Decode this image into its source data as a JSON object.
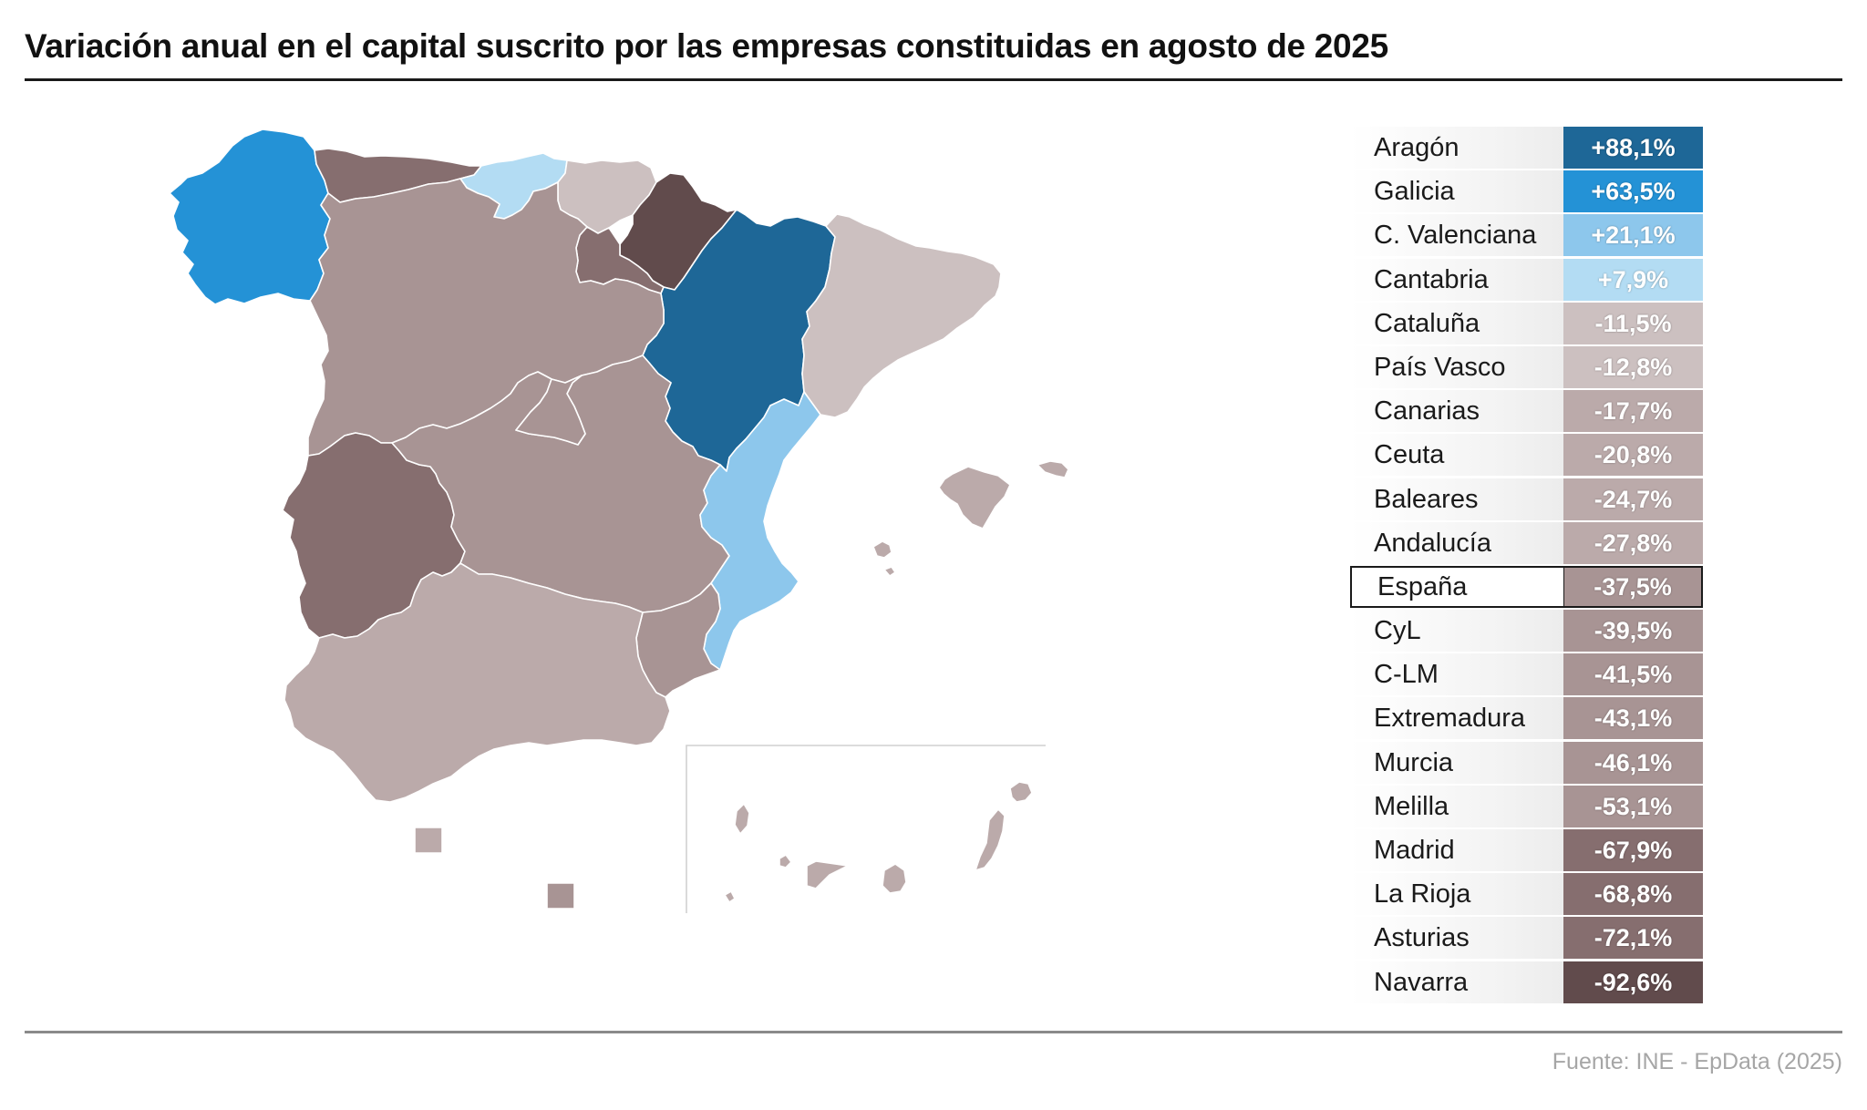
{
  "title": "Variación anual en el capital suscrito por las empresas constituidas en agosto de 2025",
  "source": "Fuente: INE - EpData (2025)",
  "colors": {
    "strong_positive": "#1e6797",
    "positive": "#2492d6",
    "mild_positive": "#8dc7ec",
    "slight_positive": "#b3dcf3",
    "slight_negative": "#ccc0c0",
    "mild_negative": "#bbaaaa",
    "negative": "#a89494",
    "strong_negative": "#866e6f",
    "very_strong_negative": "#614b4c"
  },
  "map": {
    "regions": [
      {
        "region": "Galicia",
        "value": "+63,5%",
        "color": "#2492d6"
      },
      {
        "region": "Asturias",
        "value": "-72,1%",
        "color": "#866e6f"
      },
      {
        "region": "Cantabria",
        "value": "+7,9%",
        "color": "#b3dcf3"
      },
      {
        "region": "País Vasco",
        "value": "-12,8%",
        "color": "#ccc0c0"
      },
      {
        "region": "Navarra",
        "value": "-92,6%",
        "color": "#614b4c"
      },
      {
        "region": "La Rioja",
        "value": "-68,8%",
        "color": "#866e6f"
      },
      {
        "region": "Aragón",
        "value": "+88,1%",
        "color": "#1e6797"
      },
      {
        "region": "Cataluña",
        "value": "-11,5%",
        "color": "#ccc0c0"
      },
      {
        "region": "CyL",
        "value": "-39,5%",
        "color": "#a89494"
      },
      {
        "region": "Madrid",
        "value": "-67,9%",
        "color": "#866e6f"
      },
      {
        "region": "C-LM",
        "value": "-41,5%",
        "color": "#a89494"
      },
      {
        "region": "Extremadura",
        "value": "-43,1%",
        "color": "#a89494"
      },
      {
        "region": "C. Valenciana",
        "value": "+21,1%",
        "color": "#8dc7ec"
      },
      {
        "region": "Murcia",
        "value": "-46,1%",
        "color": "#a89494"
      },
      {
        "region": "Andalucía",
        "value": "-27,8%",
        "color": "#bbaaaa"
      },
      {
        "region": "Baleares",
        "value": "-24,7%",
        "color": "#bbaaaa"
      },
      {
        "region": "Canarias",
        "value": "-17,7%",
        "color": "#bbaaaa"
      },
      {
        "region": "Ceuta",
        "value": "-20,8%",
        "color": "#bbaaaa"
      },
      {
        "region": "Melilla",
        "value": "-53,1%",
        "color": "#a89494"
      }
    ]
  },
  "legend": [
    {
      "name": "Aragón",
      "value": "+88,1%",
      "color": "#1e6797"
    },
    {
      "name": "Galicia",
      "value": "+63,5%",
      "color": "#2492d6"
    },
    {
      "name": "C. Valenciana",
      "value": "+21,1%",
      "color": "#8dc7ec"
    },
    {
      "name": "Cantabria",
      "value": "+7,9%",
      "color": "#b3dcf3"
    },
    {
      "name": "Cataluña",
      "value": "-11,5%",
      "color": "#ccc0c0"
    },
    {
      "name": "País Vasco",
      "value": "-12,8%",
      "color": "#ccc0c0"
    },
    {
      "name": "Canarias",
      "value": "-17,7%",
      "color": "#bbaaaa"
    },
    {
      "name": "Ceuta",
      "value": "-20,8%",
      "color": "#bbaaaa"
    },
    {
      "name": "Baleares",
      "value": "-24,7%",
      "color": "#bbaaaa"
    },
    {
      "name": "Andalucía",
      "value": "-27,8%",
      "color": "#bbaaaa"
    },
    {
      "name": "España",
      "value": "-37,5%",
      "color": "#a89494",
      "highlight": true
    },
    {
      "name": "CyL",
      "value": "-39,5%",
      "color": "#a89494"
    },
    {
      "name": "C-LM",
      "value": "-41,5%",
      "color": "#a89494"
    },
    {
      "name": "Extremadura",
      "value": "-43,1%",
      "color": "#a89494"
    },
    {
      "name": "Murcia",
      "value": "-46,1%",
      "color": "#a89494"
    },
    {
      "name": "Melilla",
      "value": "-53,1%",
      "color": "#a89494"
    },
    {
      "name": "Madrid",
      "value": "-67,9%",
      "color": "#866e6f"
    },
    {
      "name": "La Rioja",
      "value": "-68,8%",
      "color": "#866e6f"
    },
    {
      "name": "Asturias",
      "value": "-72,1%",
      "color": "#866e6f"
    },
    {
      "name": "Navarra",
      "value": "-92,6%",
      "color": "#614b4c"
    }
  ]
}
